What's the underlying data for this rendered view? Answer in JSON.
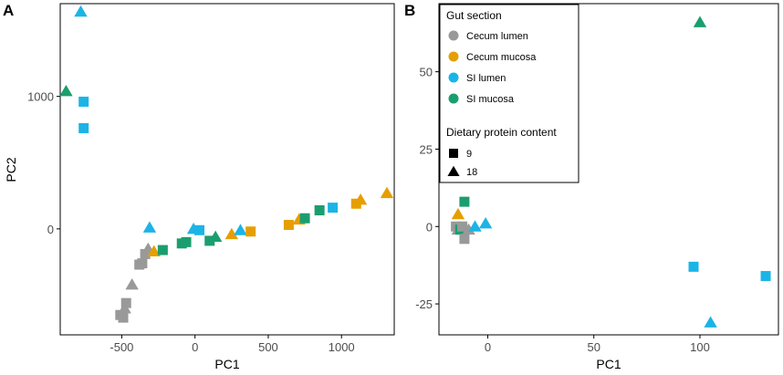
{
  "colors": {
    "cecum_lumen": "#999999",
    "cecum_mucosa": "#E69F00",
    "si_lumen": "#1CB4E6",
    "si_mucosa": "#1B9E6E",
    "axis": "#000000",
    "tick_label": "#4d4d4d"
  },
  "chart_data": [
    {
      "type": "scatter",
      "panel_label": "A",
      "xlabel": "PC1",
      "ylabel": "PC2",
      "xlim": [
        -920,
        1360
      ],
      "ylim": [
        -800,
        1700
      ],
      "xticks": [
        -500,
        0,
        500,
        1000
      ],
      "xtick_labels": [
        "-500",
        "0",
        "500",
        "1000"
      ],
      "yticks": [
        0,
        1000
      ],
      "ytick_labels": [
        "0",
        "1000"
      ],
      "points": [
        {
          "x": -780,
          "y": 1640,
          "group": "si_lumen",
          "protein": "18"
        },
        {
          "x": -880,
          "y": 1040,
          "group": "si_mucosa",
          "protein": "18"
        },
        {
          "x": -760,
          "y": 960,
          "group": "si_lumen",
          "protein": "9"
        },
        {
          "x": -760,
          "y": 760,
          "group": "si_lumen",
          "protein": "9"
        },
        {
          "x": -510,
          "y": -650,
          "group": "cecum_lumen",
          "protein": "9"
        },
        {
          "x": -490,
          "y": -670,
          "group": "cecum_lumen",
          "protein": "9"
        },
        {
          "x": -480,
          "y": -600,
          "group": "cecum_lumen",
          "protein": "18"
        },
        {
          "x": -470,
          "y": -560,
          "group": "cecum_lumen",
          "protein": "9"
        },
        {
          "x": -430,
          "y": -420,
          "group": "cecum_lumen",
          "protein": "18"
        },
        {
          "x": -380,
          "y": -270,
          "group": "cecum_lumen",
          "protein": "9"
        },
        {
          "x": -360,
          "y": -260,
          "group": "cecum_lumen",
          "protein": "9"
        },
        {
          "x": -340,
          "y": -190,
          "group": "cecum_lumen",
          "protein": "9"
        },
        {
          "x": -320,
          "y": -150,
          "group": "cecum_lumen",
          "protein": "18"
        },
        {
          "x": -310,
          "y": 10,
          "group": "si_lumen",
          "protein": "18"
        },
        {
          "x": -280,
          "y": -170,
          "group": "cecum_mucosa",
          "protein": "18"
        },
        {
          "x": -220,
          "y": -160,
          "group": "si_mucosa",
          "protein": "9"
        },
        {
          "x": -90,
          "y": -110,
          "group": "si_mucosa",
          "protein": "9"
        },
        {
          "x": -60,
          "y": -100,
          "group": "si_mucosa",
          "protein": "9"
        },
        {
          "x": -10,
          "y": 0,
          "group": "si_lumen",
          "protein": "18"
        },
        {
          "x": 30,
          "y": -10,
          "group": "si_lumen",
          "protein": "9"
        },
        {
          "x": 100,
          "y": -90,
          "group": "si_mucosa",
          "protein": "9"
        },
        {
          "x": 140,
          "y": -60,
          "group": "si_mucosa",
          "protein": "18"
        },
        {
          "x": 250,
          "y": -40,
          "group": "cecum_mucosa",
          "protein": "18"
        },
        {
          "x": 310,
          "y": -10,
          "group": "si_lumen",
          "protein": "18"
        },
        {
          "x": 380,
          "y": -20,
          "group": "cecum_mucosa",
          "protein": "9"
        },
        {
          "x": 640,
          "y": 30,
          "group": "cecum_mucosa",
          "protein": "9"
        },
        {
          "x": 710,
          "y": 70,
          "group": "cecum_mucosa",
          "protein": "18"
        },
        {
          "x": 750,
          "y": 80,
          "group": "si_mucosa",
          "protein": "9"
        },
        {
          "x": 850,
          "y": 140,
          "group": "si_mucosa",
          "protein": "9"
        },
        {
          "x": 940,
          "y": 160,
          "group": "si_lumen",
          "protein": "9"
        },
        {
          "x": 1100,
          "y": 190,
          "group": "cecum_mucosa",
          "protein": "9"
        },
        {
          "x": 1130,
          "y": 220,
          "group": "cecum_mucosa",
          "protein": "18"
        },
        {
          "x": 1310,
          "y": 270,
          "group": "cecum_mucosa",
          "protein": "18"
        }
      ]
    },
    {
      "type": "scatter",
      "panel_label": "B",
      "xlabel": "PC1",
      "ylabel": "",
      "xlim": [
        -23,
        137
      ],
      "ylim": [
        -35,
        72
      ],
      "xticks": [
        0,
        50,
        100
      ],
      "xtick_labels": [
        "0",
        "50",
        "100"
      ],
      "yticks": [
        -25,
        0,
        25,
        50
      ],
      "ytick_labels": [
        "-25",
        "0",
        "25",
        "50"
      ],
      "points": [
        {
          "x": 100,
          "y": 66,
          "group": "si_mucosa",
          "protein": "18"
        },
        {
          "x": -11,
          "y": 8,
          "group": "si_mucosa",
          "protein": "9"
        },
        {
          "x": -14,
          "y": 4,
          "group": "cecum_mucosa",
          "protein": "18"
        },
        {
          "x": -15,
          "y": 0,
          "group": "cecum_lumen",
          "protein": "9"
        },
        {
          "x": -14,
          "y": -1,
          "group": "cecum_lumen",
          "protein": "18"
        },
        {
          "x": -13,
          "y": -1,
          "group": "si_mucosa",
          "protein": "9"
        },
        {
          "x": -12,
          "y": 0,
          "group": "cecum_lumen",
          "protein": "9"
        },
        {
          "x": -9,
          "y": -1,
          "group": "cecum_lumen",
          "protein": "18"
        },
        {
          "x": -11,
          "y": -4,
          "group": "cecum_lumen",
          "protein": "9"
        },
        {
          "x": -6,
          "y": 0,
          "group": "si_lumen",
          "protein": "18"
        },
        {
          "x": -1,
          "y": 1,
          "group": "si_lumen",
          "protein": "18"
        },
        {
          "x": 97,
          "y": -13,
          "group": "si_lumen",
          "protein": "9"
        },
        {
          "x": 131,
          "y": -16,
          "group": "si_lumen",
          "protein": "9"
        },
        {
          "x": 105,
          "y": -31,
          "group": "si_lumen",
          "protein": "18"
        }
      ],
      "legend": {
        "placement": "top-left",
        "color_title": "Gut section",
        "color_entries": [
          {
            "label": "Cecum lumen",
            "group": "cecum_lumen"
          },
          {
            "label": "Cecum mucosa",
            "group": "cecum_mucosa"
          },
          {
            "label": "SI lumen",
            "group": "si_lumen"
          },
          {
            "label": "SI mucosa",
            "group": "si_mucosa"
          }
        ],
        "shape_title": "Dietary protein content",
        "shape_entries": [
          {
            "label": "9",
            "protein": "9"
          },
          {
            "label": "18",
            "protein": "18"
          }
        ]
      }
    }
  ]
}
